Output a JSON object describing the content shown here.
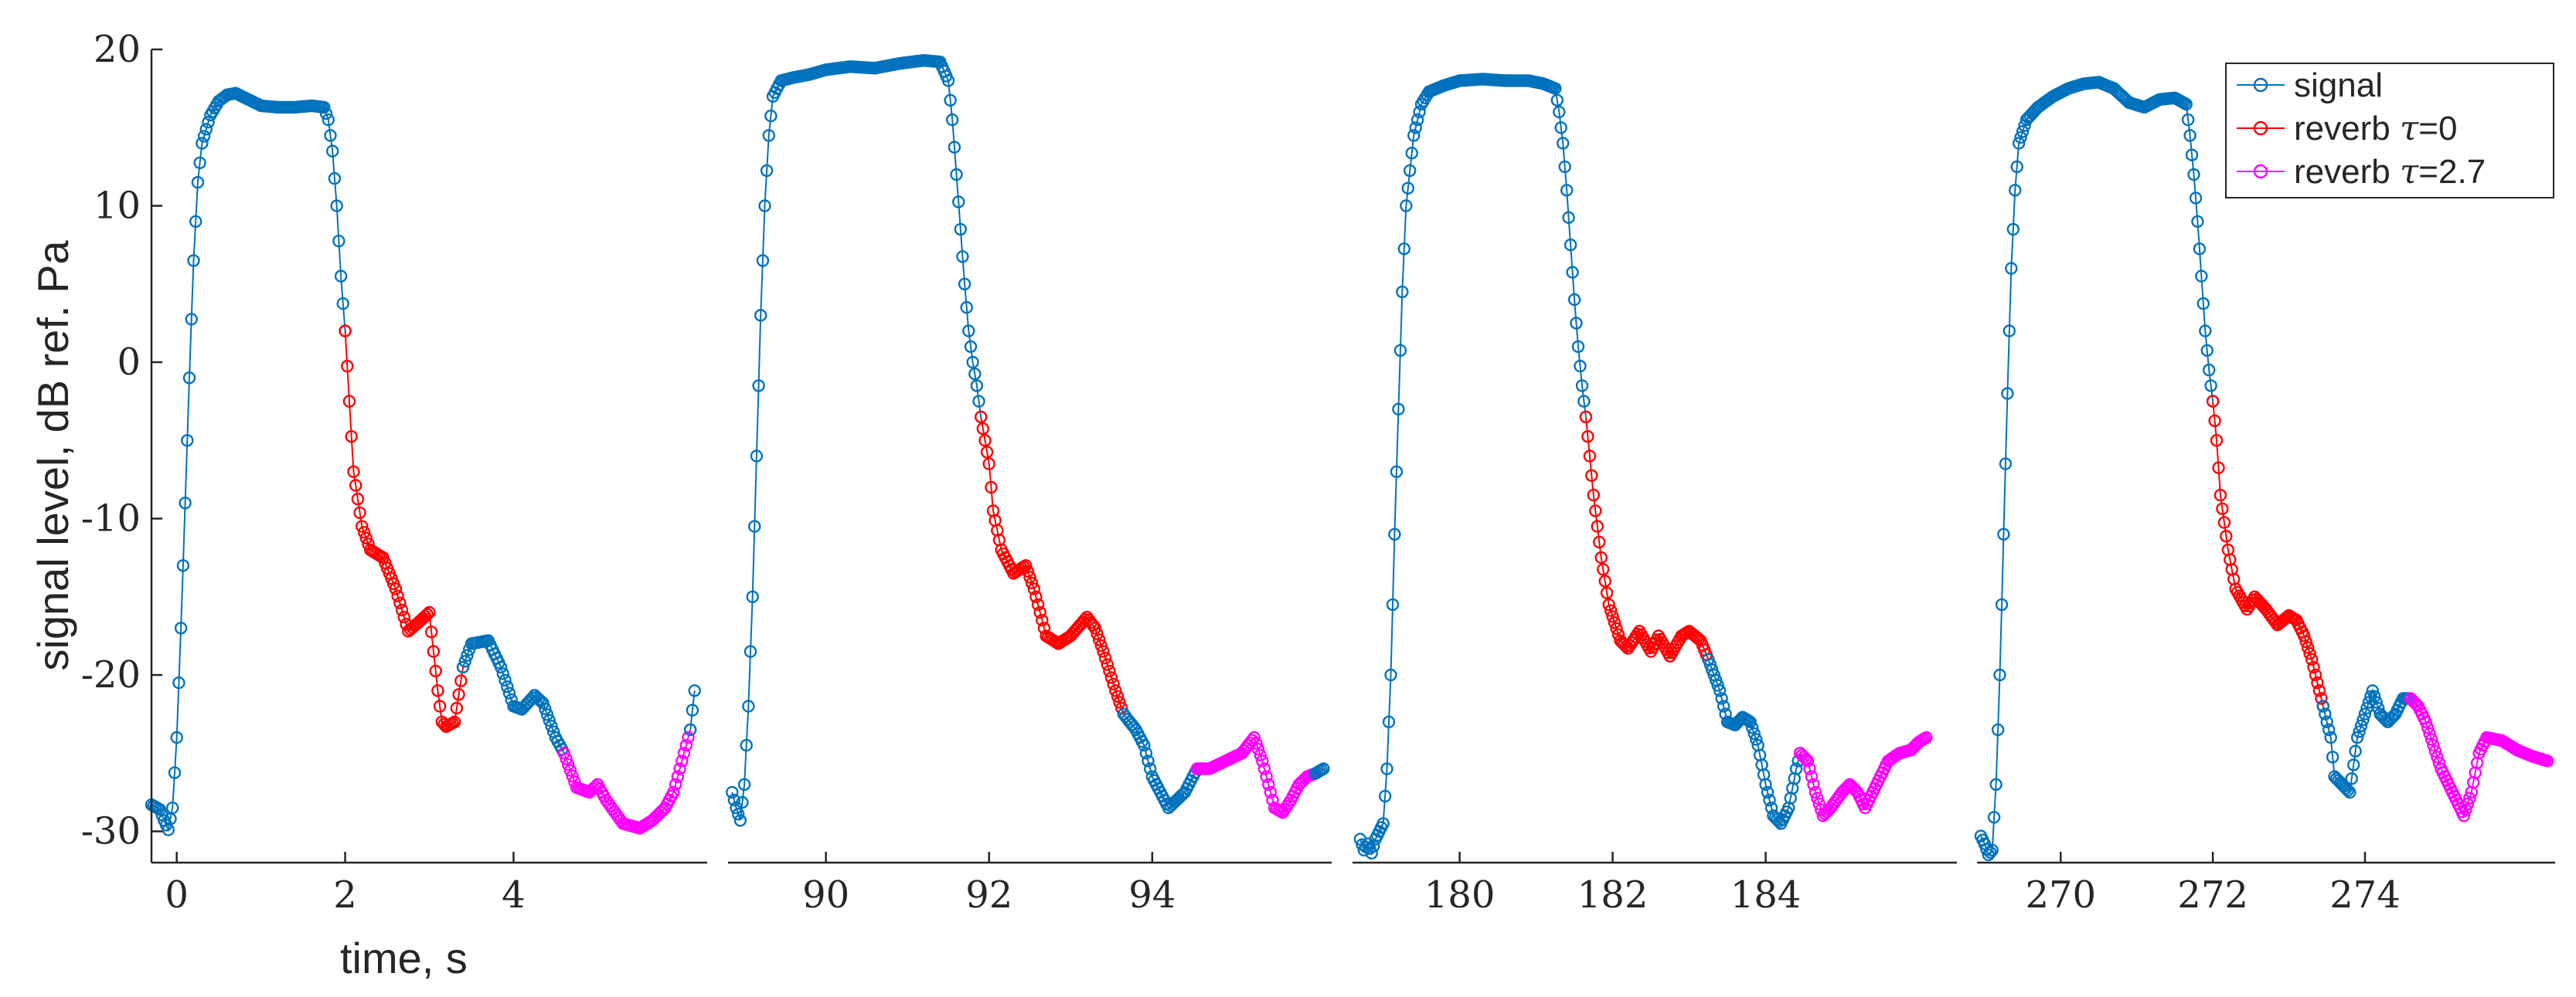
{
  "chart_data": {
    "type": "line",
    "xlabel": "time, s",
    "ylabel": "signal level, dB ref. Pa",
    "ylim": [
      -32,
      20
    ],
    "yticks": [
      20,
      10,
      0,
      -10,
      -20,
      -30
    ],
    "grid": false,
    "legend_position": "top-right",
    "colors": {
      "signal": "#0072BD",
      "reverb0": "#FF0000",
      "reverb27": "#FF00FF",
      "axis": "#262626"
    },
    "legend": [
      {
        "key": "signal",
        "label": "signal"
      },
      {
        "key": "reverb0",
        "prefix": "reverb ",
        "symbol": "τ",
        "suffix": "=0"
      },
      {
        "key": "reverb27",
        "prefix": "reverb ",
        "symbol": "τ",
        "suffix": "=2.7"
      }
    ],
    "segments": [
      {
        "xlim": [
          -0.3,
          6.3
        ],
        "xticks": [
          0,
          2,
          4
        ],
        "signal": [
          [
            -0.3,
            -28.3
          ],
          [
            -0.2,
            -28.6
          ],
          [
            -0.15,
            -29.3
          ],
          [
            -0.1,
            -29.9
          ],
          [
            -0.05,
            -28.5
          ],
          [
            0.0,
            -24.0
          ],
          [
            0.05,
            -17.0
          ],
          [
            0.1,
            -9.0
          ],
          [
            0.15,
            -1.0
          ],
          [
            0.2,
            6.5
          ],
          [
            0.25,
            11.5
          ],
          [
            0.3,
            14.0
          ],
          [
            0.4,
            15.8
          ],
          [
            0.5,
            16.7
          ],
          [
            0.6,
            17.1
          ],
          [
            0.7,
            17.2
          ],
          [
            0.85,
            16.8
          ],
          [
            1.0,
            16.4
          ],
          [
            1.2,
            16.3
          ],
          [
            1.4,
            16.3
          ],
          [
            1.6,
            16.4
          ],
          [
            1.75,
            16.3
          ],
          [
            1.8,
            15.5
          ],
          [
            1.85,
            13.5
          ],
          [
            1.9,
            10.0
          ],
          [
            1.95,
            5.5
          ],
          [
            2.0,
            2.0
          ]
        ],
        "reverb0": [
          [
            2.0,
            2.0
          ],
          [
            2.05,
            -2.5
          ],
          [
            2.1,
            -7.0
          ],
          [
            2.2,
            -10.5
          ],
          [
            2.3,
            -12.0
          ],
          [
            2.45,
            -12.5
          ],
          [
            2.6,
            -14.5
          ],
          [
            2.75,
            -17.2
          ],
          [
            2.9,
            -16.5
          ],
          [
            3.0,
            -16.0
          ],
          [
            3.05,
            -18.5
          ],
          [
            3.1,
            -21.0
          ],
          [
            3.15,
            -23.0
          ],
          [
            3.2,
            -23.3
          ],
          [
            3.3,
            -23.0
          ],
          [
            3.4,
            -19.5
          ]
        ],
        "signal2": [
          [
            3.4,
            -19.5
          ],
          [
            3.5,
            -18.0
          ],
          [
            3.7,
            -17.8
          ],
          [
            3.85,
            -19.5
          ],
          [
            4.0,
            -22.0
          ],
          [
            4.1,
            -22.2
          ],
          [
            4.25,
            -21.3
          ],
          [
            4.35,
            -21.8
          ],
          [
            4.5,
            -24.0
          ],
          [
            4.6,
            -25.0
          ]
        ],
        "reverb27": [
          [
            4.6,
            -25.0
          ],
          [
            4.75,
            -27.2
          ],
          [
            4.9,
            -27.5
          ],
          [
            5.0,
            -27.0
          ],
          [
            5.1,
            -28.0
          ],
          [
            5.3,
            -29.5
          ],
          [
            5.5,
            -29.8
          ],
          [
            5.65,
            -29.3
          ],
          [
            5.8,
            -28.5
          ],
          [
            5.9,
            -27.5
          ],
          [
            6.0,
            -25.5
          ],
          [
            6.1,
            -23.5
          ]
        ],
        "signal3": [
          [
            6.1,
            -23.5
          ],
          [
            6.15,
            -21.0
          ]
        ]
      },
      {
        "xlim": [
          88.8,
          96.2
        ],
        "xticks": [
          90,
          92,
          94
        ],
        "signal": [
          [
            88.85,
            -27.5
          ],
          [
            88.9,
            -28.5
          ],
          [
            88.95,
            -29.3
          ],
          [
            89.0,
            -27.0
          ],
          [
            89.05,
            -22.0
          ],
          [
            89.1,
            -15.0
          ],
          [
            89.15,
            -6.0
          ],
          [
            89.2,
            3.0
          ],
          [
            89.25,
            10.0
          ],
          [
            89.3,
            14.5
          ],
          [
            89.35,
            17.0
          ],
          [
            89.45,
            18.0
          ],
          [
            89.6,
            18.2
          ],
          [
            89.8,
            18.4
          ],
          [
            90.0,
            18.7
          ],
          [
            90.3,
            18.9
          ],
          [
            90.6,
            18.8
          ],
          [
            90.9,
            19.1
          ],
          [
            91.2,
            19.3
          ],
          [
            91.4,
            19.2
          ],
          [
            91.5,
            18.0
          ],
          [
            91.55,
            15.5
          ],
          [
            91.6,
            12.0
          ],
          [
            91.65,
            8.5
          ],
          [
            91.7,
            5.0
          ],
          [
            91.75,
            2.0
          ],
          [
            91.8,
            0.0
          ],
          [
            91.85,
            -1.5
          ],
          [
            91.9,
            -3.5
          ]
        ],
        "reverb0": [
          [
            91.9,
            -3.5
          ],
          [
            92.0,
            -6.5
          ],
          [
            92.05,
            -9.5
          ],
          [
            92.15,
            -12.0
          ],
          [
            92.3,
            -13.5
          ],
          [
            92.45,
            -13.0
          ],
          [
            92.55,
            -14.5
          ],
          [
            92.7,
            -17.5
          ],
          [
            92.85,
            -18.0
          ],
          [
            93.0,
            -17.5
          ],
          [
            93.2,
            -16.3
          ],
          [
            93.3,
            -17.0
          ],
          [
            93.4,
            -18.5
          ],
          [
            93.55,
            -21.0
          ],
          [
            93.65,
            -22.5
          ]
        ],
        "signal2": [
          [
            93.65,
            -22.5
          ],
          [
            93.8,
            -23.5
          ],
          [
            93.9,
            -24.5
          ],
          [
            94.0,
            -26.5
          ],
          [
            94.1,
            -27.5
          ],
          [
            94.2,
            -28.5
          ],
          [
            94.3,
            -28.0
          ],
          [
            94.4,
            -27.5
          ],
          [
            94.5,
            -26.5
          ],
          [
            94.55,
            -26.0
          ]
        ],
        "reverb27": [
          [
            94.55,
            -26.0
          ],
          [
            94.7,
            -26.0
          ],
          [
            94.9,
            -25.5
          ],
          [
            95.1,
            -25.0
          ],
          [
            95.25,
            -24.0
          ],
          [
            95.35,
            -25.5
          ],
          [
            95.5,
            -28.5
          ],
          [
            95.6,
            -28.8
          ],
          [
            95.7,
            -28.0
          ],
          [
            95.8,
            -27.0
          ],
          [
            95.9,
            -26.5
          ],
          [
            96.0,
            -26.3
          ]
        ],
        "signal3": [
          [
            96.0,
            -26.3
          ],
          [
            96.1,
            -26.0
          ]
        ]
      },
      {
        "xlim": [
          178.6,
          186.5
        ],
        "xticks": [
          180,
          182,
          184
        ],
        "signal": [
          [
            178.7,
            -30.5
          ],
          [
            178.75,
            -31.2
          ],
          [
            178.8,
            -30.8
          ],
          [
            178.85,
            -31.4
          ],
          [
            178.9,
            -30.5
          ],
          [
            179.0,
            -29.5
          ],
          [
            179.05,
            -26.0
          ],
          [
            179.1,
            -20.0
          ],
          [
            179.15,
            -11.0
          ],
          [
            179.2,
            -3.0
          ],
          [
            179.25,
            4.5
          ],
          [
            179.3,
            10.0
          ],
          [
            179.4,
            14.5
          ],
          [
            179.5,
            16.5
          ],
          [
            179.6,
            17.3
          ],
          [
            179.8,
            17.7
          ],
          [
            180.0,
            18.0
          ],
          [
            180.3,
            18.1
          ],
          [
            180.6,
            18.0
          ],
          [
            180.9,
            18.0
          ],
          [
            181.1,
            17.8
          ],
          [
            181.25,
            17.5
          ],
          [
            181.3,
            16.0
          ],
          [
            181.35,
            14.0
          ],
          [
            181.4,
            11.0
          ],
          [
            181.45,
            7.5
          ],
          [
            181.5,
            4.0
          ],
          [
            181.55,
            1.0
          ],
          [
            181.6,
            -1.5
          ],
          [
            181.65,
            -3.5
          ]
        ],
        "reverb0": [
          [
            181.65,
            -3.5
          ],
          [
            181.75,
            -8.5
          ],
          [
            181.85,
            -12.5
          ],
          [
            181.95,
            -15.5
          ],
          [
            182.1,
            -17.8
          ],
          [
            182.2,
            -18.3
          ],
          [
            182.35,
            -17.2
          ],
          [
            182.5,
            -18.5
          ],
          [
            182.6,
            -17.5
          ],
          [
            182.75,
            -18.8
          ],
          [
            182.9,
            -17.5
          ],
          [
            183.0,
            -17.2
          ],
          [
            183.15,
            -17.8
          ],
          [
            183.25,
            -19.0
          ]
        ],
        "signal2": [
          [
            183.25,
            -19.0
          ],
          [
            183.4,
            -21.0
          ],
          [
            183.5,
            -23.0
          ],
          [
            183.6,
            -23.2
          ],
          [
            183.7,
            -22.7
          ],
          [
            183.8,
            -23.0
          ],
          [
            183.9,
            -24.5
          ],
          [
            184.0,
            -27.0
          ],
          [
            184.1,
            -29.0
          ],
          [
            184.2,
            -29.5
          ],
          [
            184.3,
            -28.5
          ],
          [
            184.4,
            -26.0
          ],
          [
            184.45,
            -25.0
          ]
        ],
        "reverb27": [
          [
            184.45,
            -25.0
          ],
          [
            184.55,
            -25.5
          ],
          [
            184.65,
            -27.5
          ],
          [
            184.75,
            -29.0
          ],
          [
            184.85,
            -28.5
          ],
          [
            185.0,
            -27.5
          ],
          [
            185.1,
            -27.0
          ],
          [
            185.2,
            -27.5
          ],
          [
            185.3,
            -28.5
          ],
          [
            185.4,
            -27.5
          ],
          [
            185.5,
            -26.5
          ],
          [
            185.6,
            -25.5
          ],
          [
            185.75,
            -25.0
          ],
          [
            185.9,
            -24.8
          ],
          [
            186.0,
            -24.3
          ],
          [
            186.1,
            -24.0
          ]
        ]
      },
      {
        "xlim": [
          268.9,
          276.5
        ],
        "xticks": [
          270,
          272,
          274
        ],
        "signal": [
          [
            268.95,
            -30.3
          ],
          [
            269.0,
            -30.8
          ],
          [
            269.05,
            -31.5
          ],
          [
            269.1,
            -31.2
          ],
          [
            269.15,
            -27.0
          ],
          [
            269.2,
            -20.0
          ],
          [
            269.25,
            -11.0
          ],
          [
            269.3,
            -2.0
          ],
          [
            269.35,
            6.0
          ],
          [
            269.4,
            11.0
          ],
          [
            269.45,
            14.0
          ],
          [
            269.55,
            15.5
          ],
          [
            269.7,
            16.3
          ],
          [
            269.9,
            17.0
          ],
          [
            270.1,
            17.5
          ],
          [
            270.3,
            17.8
          ],
          [
            270.5,
            17.9
          ],
          [
            270.7,
            17.5
          ],
          [
            270.9,
            16.6
          ],
          [
            271.1,
            16.3
          ],
          [
            271.3,
            16.8
          ],
          [
            271.5,
            16.9
          ],
          [
            271.65,
            16.5
          ],
          [
            271.7,
            14.5
          ],
          [
            271.75,
            12.0
          ],
          [
            271.8,
            9.0
          ],
          [
            271.85,
            5.5
          ],
          [
            271.9,
            2.0
          ],
          [
            271.95,
            -0.5
          ],
          [
            272.0,
            -2.5
          ]
        ],
        "reverb0": [
          [
            272.0,
            -2.5
          ],
          [
            272.05,
            -5.0
          ],
          [
            272.1,
            -8.5
          ],
          [
            272.2,
            -12.0
          ],
          [
            272.3,
            -14.5
          ],
          [
            272.45,
            -15.8
          ],
          [
            272.55,
            -15.0
          ],
          [
            272.7,
            -15.8
          ],
          [
            272.85,
            -16.8
          ],
          [
            273.0,
            -16.2
          ],
          [
            273.1,
            -16.5
          ],
          [
            273.2,
            -17.5
          ],
          [
            273.3,
            -19.0
          ],
          [
            273.4,
            -21.0
          ],
          [
            273.45,
            -22.0
          ]
        ],
        "signal2": [
          [
            273.45,
            -22.0
          ],
          [
            273.55,
            -24.0
          ],
          [
            273.6,
            -26.5
          ],
          [
            273.7,
            -27.0
          ],
          [
            273.8,
            -27.5
          ],
          [
            273.9,
            -24.0
          ],
          [
            274.0,
            -22.5
          ],
          [
            274.1,
            -21.0
          ],
          [
            274.2,
            -22.5
          ],
          [
            274.3,
            -23.0
          ],
          [
            274.4,
            -22.5
          ],
          [
            274.5,
            -21.5
          ],
          [
            274.6,
            -21.5
          ]
        ],
        "reverb27": [
          [
            274.6,
            -21.5
          ],
          [
            274.7,
            -22.0
          ],
          [
            274.8,
            -23.0
          ],
          [
            274.9,
            -24.5
          ],
          [
            275.0,
            -26.0
          ],
          [
            275.1,
            -27.0
          ],
          [
            275.2,
            -28.0
          ],
          [
            275.3,
            -29.0
          ],
          [
            275.4,
            -27.5
          ],
          [
            275.5,
            -25.0
          ],
          [
            275.6,
            -24.0
          ],
          [
            275.8,
            -24.2
          ],
          [
            276.0,
            -24.8
          ],
          [
            276.2,
            -25.2
          ],
          [
            276.4,
            -25.5
          ]
        ]
      }
    ]
  }
}
